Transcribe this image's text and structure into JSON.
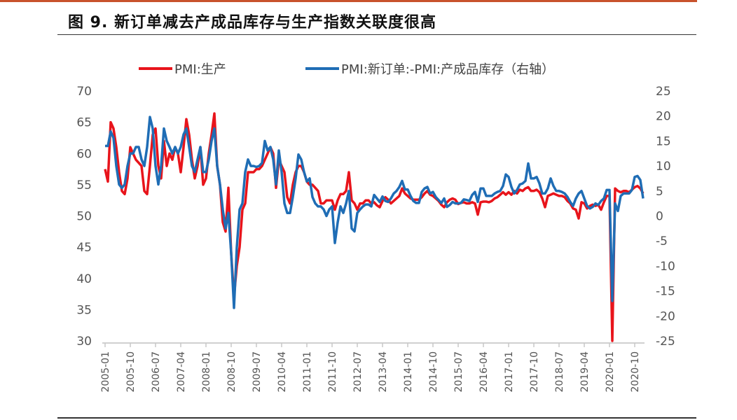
{
  "title": "图 9. 新订单减去产成品库存与生产指数关联度很高",
  "chart_data": {
    "type": "line",
    "title": "图 9. 新订单减去产成品库存与生产指数关联度很高",
    "x_start": "2005-01",
    "x_end": "2021-01",
    "x_ticks": [
      "2005-01",
      "2005-10",
      "2006-07",
      "2007-04",
      "2008-01",
      "2008-10",
      "2009-07",
      "2010-04",
      "2011-01",
      "2011-10",
      "2012-07",
      "2013-04",
      "2014-01",
      "2014-10",
      "2015-07",
      "2016-04",
      "2017-01",
      "2017-10",
      "2018-07",
      "2019-04",
      "2020-01",
      "2020-10"
    ],
    "y_left": {
      "min": 30,
      "max": 70,
      "ticks": [
        "70",
        "65",
        "60",
        "55",
        "50",
        "45",
        "40",
        "35",
        "30"
      ]
    },
    "y_right": {
      "min": -25,
      "max": 25,
      "ticks": [
        "25",
        "20",
        "15",
        "10",
        "5",
        "0",
        "-5",
        "-10",
        "-15",
        "-20",
        "-25"
      ]
    },
    "legend_position": "top",
    "grid": false,
    "series": [
      {
        "name": "PMI:生产",
        "axis": "left",
        "color": "#e8141b",
        "values": [
          57.5,
          55.5,
          65,
          64,
          61,
          57,
          54,
          53.5,
          56,
          61,
          60,
          59,
          58.5,
          58,
          54,
          53.5,
          58,
          63,
          64,
          58,
          56,
          62,
          58,
          60,
          59,
          61,
          60,
          57,
          61,
          65.5,
          63,
          59,
          56,
          58,
          61,
          55,
          56,
          60,
          63,
          66.4,
          58,
          55,
          49,
          47.5,
          54.5,
          44,
          37,
          42,
          45,
          51,
          52,
          57,
          57,
          57,
          57.5,
          57.5,
          58,
          59,
          60,
          61,
          60,
          54.5,
          59,
          58,
          57,
          53,
          52,
          55,
          57,
          58,
          58,
          57,
          55.5,
          55,
          55,
          54.5,
          54,
          52,
          52,
          52.5,
          52.5,
          52.5,
          51,
          52.5,
          53.5,
          53.5,
          54,
          57,
          52.5,
          52,
          51,
          52,
          52,
          52.5,
          52.5,
          52,
          52.2,
          51.7,
          51.4,
          52.4,
          53,
          52.6,
          52,
          52.4,
          52.8,
          53.2,
          54.4,
          53.6,
          53.2,
          52.8,
          52.6,
          52.6,
          52.6,
          53,
          53.6,
          54,
          53.4,
          53.2,
          52.8,
          52.4,
          51.8,
          51.4,
          52.2,
          52.6,
          52.8,
          52.6,
          51.9,
          52.1,
          52.2,
          52,
          52,
          52.2,
          52,
          50.2,
          52.2,
          52.3,
          52.3,
          52.2,
          52.4,
          52.8,
          53,
          53.4,
          53.8,
          53.4,
          53.8,
          53.4,
          54,
          53.6,
          54.2,
          54,
          54.4,
          54.6,
          54,
          54,
          54.2,
          53.8,
          52.8,
          51.4,
          53.2,
          53.4,
          53.6,
          53.4,
          53.2,
          53.2,
          53,
          52.4,
          52,
          51.2,
          51,
          49.6,
          52.2,
          52,
          51.2,
          51.6,
          51.8,
          51.6,
          51.8,
          51,
          52.2,
          53.2,
          53.2,
          30,
          54.4,
          54,
          53.8,
          54,
          54,
          53.8,
          54.2,
          54.6,
          54.8,
          54.4,
          53.6
        ]
      },
      {
        "name": "PMI:新订单:-PMI:产成品库存（右轴）",
        "axis": "right",
        "color": "#1f6db5",
        "values": [
          14,
          14,
          16.9,
          15.6,
          10,
          6.3,
          5.6,
          6.3,
          10,
          12.5,
          12.5,
          13.8,
          13.8,
          11.3,
          10,
          13.8,
          19.8,
          17.5,
          10,
          6.3,
          10,
          17.5,
          15,
          13.8,
          12.5,
          13.8,
          12.5,
          13.8,
          16.3,
          17.5,
          13.8,
          10,
          8.8,
          11.3,
          13.8,
          8.8,
          8.8,
          11.3,
          15,
          17.5,
          10,
          6.3,
          1.3,
          -2.5,
          0.6,
          -7.5,
          -18.4,
          -6.3,
          1.3,
          2.5,
          8.8,
          11.3,
          10,
          10,
          9.8,
          10,
          10.6,
          15,
          13.1,
          13.8,
          11.3,
          6.3,
          13.1,
          8.8,
          2.5,
          0.6,
          0.6,
          3.8,
          7.5,
          12.3,
          11.3,
          8.8,
          6.9,
          7.5,
          3.8,
          2.5,
          1.9,
          1.9,
          1.3,
          0,
          1.3,
          1.9,
          -5.4,
          -1.3,
          1.9,
          0.6,
          2.5,
          5,
          -2.5,
          -3.1,
          0.6,
          1.3,
          1.9,
          2.3,
          2.3,
          1.9,
          4.2,
          3.5,
          2.8,
          3.9,
          3,
          2.8,
          3.5,
          4.5,
          5,
          5.8,
          7,
          5.3,
          5.3,
          4,
          3,
          2.6,
          2.6,
          4.8,
          5.5,
          5.8,
          4.5,
          4.8,
          3.8,
          3.2,
          2.6,
          3.5,
          1.8,
          2.2,
          2.8,
          2.5,
          2.5,
          2.6,
          3.3,
          3.2,
          3,
          4.2,
          4.8,
          2.8,
          5.5,
          5.5,
          4,
          4,
          4,
          4.5,
          4.8,
          5,
          6,
          8.3,
          7.8,
          5.8,
          4.5,
          5.2,
          6.3,
          6.5,
          7,
          10.5,
          7.5,
          7.5,
          7.8,
          6.5,
          4.5,
          4.5,
          5.5,
          7.5,
          6,
          5,
          5,
          4.8,
          4.5,
          3.8,
          2.8,
          2,
          3.5,
          4.5,
          5,
          3.5,
          2,
          1.5,
          1.8,
          2.5,
          2.2,
          3,
          3.5,
          5.2,
          5.2,
          -17,
          2.5,
          1,
          4,
          4.5,
          4.5,
          4.5,
          5.2,
          7.8,
          8,
          7.2,
          3.5
        ]
      }
    ]
  }
}
